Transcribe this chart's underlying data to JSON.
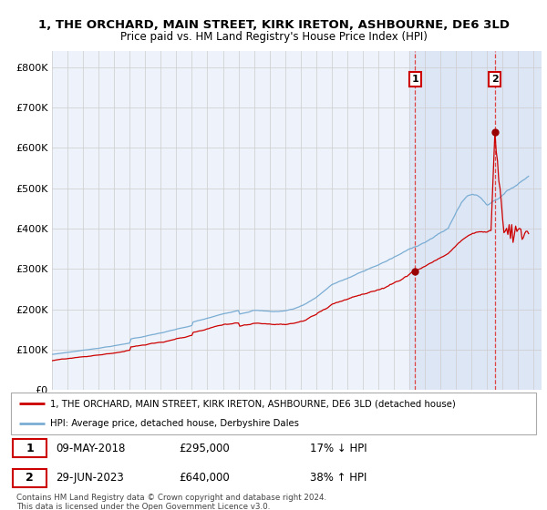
{
  "title": "1, THE ORCHARD, MAIN STREET, KIRK IRETON, ASHBOURNE, DE6 3LD",
  "subtitle": "Price paid vs. HM Land Registry's House Price Index (HPI)",
  "legend_red": "1, THE ORCHARD, MAIN STREET, KIRK IRETON, ASHBOURNE, DE6 3LD (detached house)",
  "legend_blue": "HPI: Average price, detached house, Derbyshire Dales",
  "sale1_date": "09-MAY-2018",
  "sale1_price": 295000,
  "sale1_label": "17% ↓ HPI",
  "sale1_year": 2018.36,
  "sale2_date": "29-JUN-2023",
  "sale2_price": 640000,
  "sale2_label": "38% ↑ HPI",
  "sale2_year": 2023.49,
  "ylim": [
    0,
    840000
  ],
  "xlim_start": 1995.0,
  "xlim_end": 2026.5,
  "background_color": "#ffffff",
  "plot_bg_color": "#eef2fa",
  "shaded_region_color": "#dde6f5",
  "grid_color": "#cccccc",
  "red_line_color": "#cc0000",
  "blue_line_color": "#7aadd4",
  "sale_point_color": "#990000",
  "vline_color": "#dd4444",
  "footnote": "Contains HM Land Registry data © Crown copyright and database right 2024.\nThis data is licensed under the Open Government Licence v3.0."
}
